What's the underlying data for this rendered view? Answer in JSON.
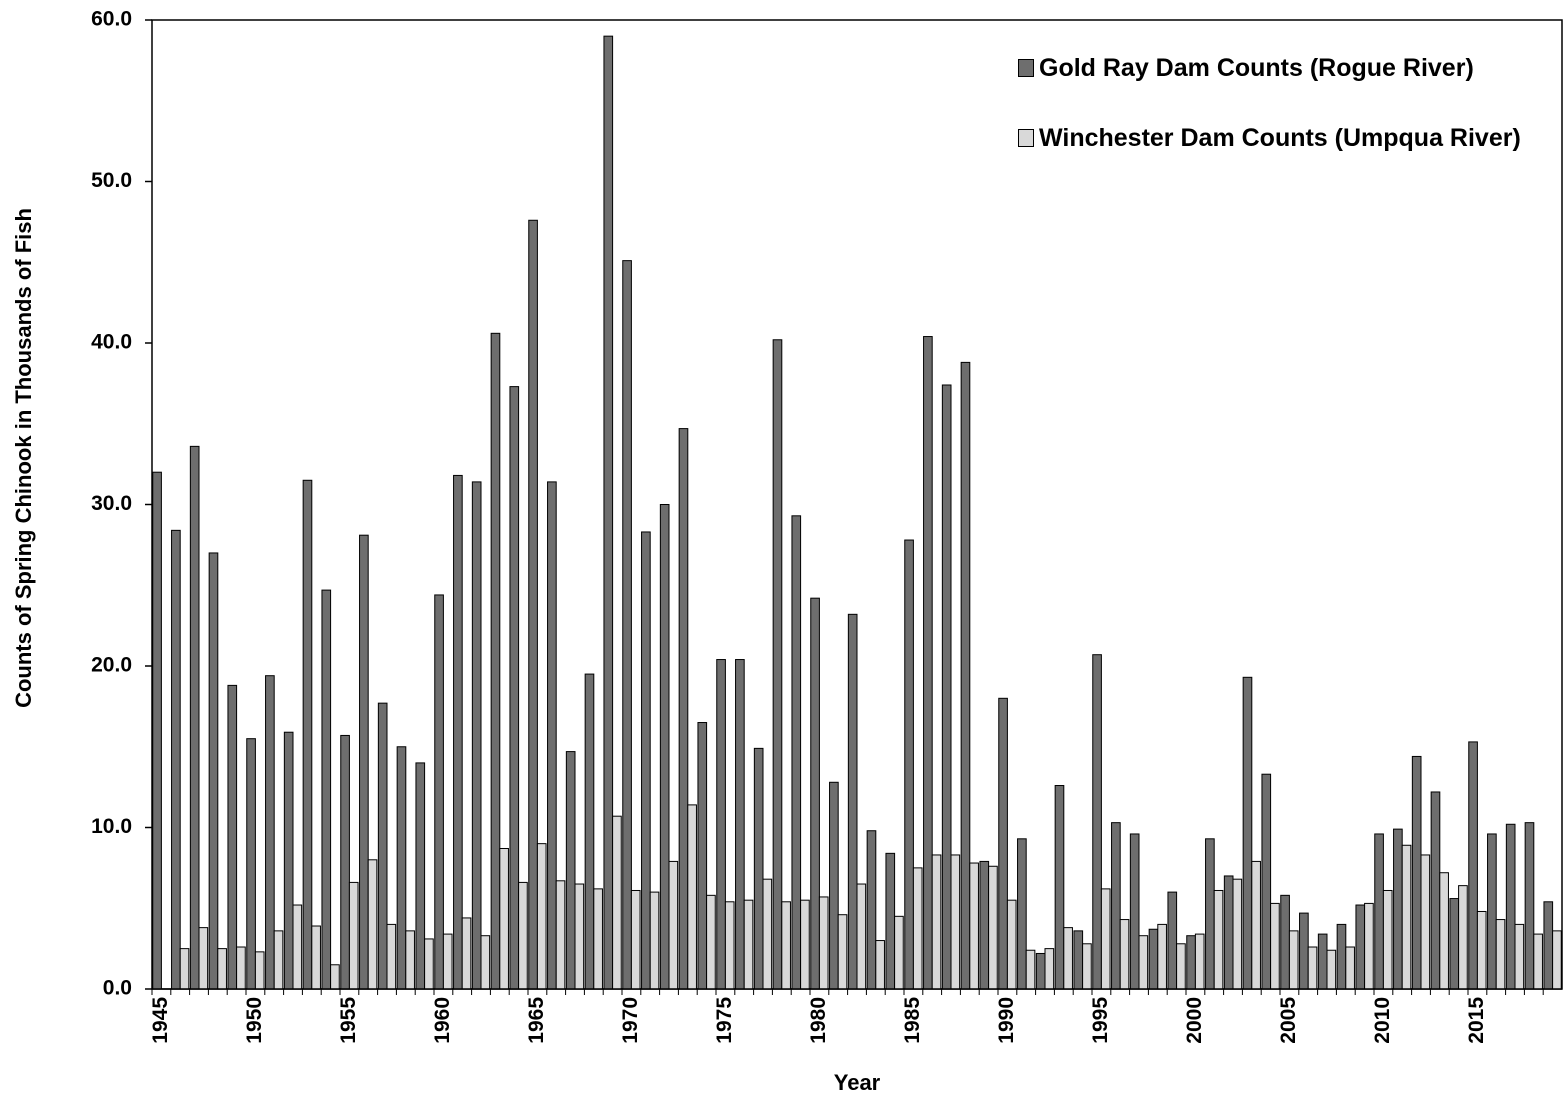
{
  "chart_data": {
    "type": "bar",
    "x_label": "Year",
    "y_label": "Counts of Spring Chinook in Thousands of Fish",
    "categories": [
      "1945",
      null,
      null,
      null,
      null,
      "1950",
      null,
      null,
      null,
      null,
      "1955",
      null,
      null,
      null,
      null,
      "1960",
      null,
      null,
      null,
      null,
      "1965",
      null,
      null,
      null,
      null,
      "1970",
      null,
      null,
      null,
      null,
      "1975",
      null,
      null,
      null,
      null,
      "1980",
      null,
      null,
      null,
      null,
      "1985",
      null,
      null,
      null,
      null,
      "1990",
      null,
      null,
      null,
      null,
      "1995",
      null,
      null,
      null,
      null,
      "2000",
      null,
      null,
      null,
      null,
      "2005",
      null,
      null,
      null,
      null,
      "2010",
      null,
      null,
      null,
      null,
      "2015",
      null,
      null,
      null,
      null
    ],
    "series": [
      {
        "name": "Gold Ray Dam Counts (Rogue River)",
        "color": "#6e6e6e",
        "values": [
          32.0,
          28.4,
          33.6,
          27.0,
          18.8,
          15.5,
          19.4,
          15.9,
          31.5,
          24.7,
          15.7,
          28.1,
          17.7,
          15.0,
          14.0,
          24.4,
          31.8,
          31.4,
          40.6,
          37.3,
          47.6,
          31.4,
          14.7,
          19.5,
          59.0,
          45.1,
          28.3,
          30.0,
          34.7,
          16.5,
          20.4,
          20.4,
          14.9,
          40.2,
          29.3,
          24.2,
          12.8,
          23.2,
          9.8,
          8.4,
          27.8,
          40.4,
          37.4,
          38.8,
          7.9,
          18.0,
          9.3,
          2.2,
          12.6,
          3.6,
          20.7,
          10.3,
          9.6,
          3.7,
          6.0,
          3.3,
          9.3,
          7.0,
          19.3,
          13.3,
          5.8,
          4.7,
          3.4,
          4.0,
          5.2,
          9.6,
          9.9,
          14.4,
          12.2,
          5.6,
          15.3,
          9.6,
          10.2,
          10.3,
          5.4
        ]
      },
      {
        "name": "Winchester Dam Counts (Umpqua River)",
        "color": "#d9d9d9",
        "values": [
          null,
          2.5,
          3.8,
          2.5,
          2.6,
          2.3,
          3.6,
          5.2,
          3.9,
          1.5,
          6.6,
          8.0,
          4.0,
          3.6,
          3.1,
          3.4,
          4.4,
          3.3,
          8.7,
          6.6,
          9.0,
          6.7,
          6.5,
          6.2,
          10.7,
          6.1,
          6.0,
          7.9,
          11.4,
          5.8,
          5.4,
          5.5,
          6.8,
          5.4,
          5.5,
          5.7,
          4.6,
          6.5,
          3.0,
          4.5,
          7.5,
          8.3,
          8.3,
          7.8,
          7.6,
          5.5,
          2.4,
          2.5,
          3.8,
          2.8,
          6.2,
          4.3,
          3.3,
          4.0,
          2.8,
          3.4,
          6.1,
          6.8,
          7.9,
          5.3,
          3.6,
          2.6,
          2.4,
          2.6,
          5.3,
          6.1,
          8.9,
          8.3,
          7.2,
          6.4,
          4.8,
          4.3,
          4.0,
          3.4,
          3.6
        ]
      }
    ],
    "ylim": [
      0,
      60
    ],
    "yticks": [
      {
        "value": 0,
        "label": "0.0"
      },
      {
        "value": 10,
        "label": "10.0"
      },
      {
        "value": 20,
        "label": "20.0"
      },
      {
        "value": 30,
        "label": "30.0"
      },
      {
        "value": 40,
        "label": "40.0"
      },
      {
        "value": 50,
        "label": "50.0"
      },
      {
        "value": 60,
        "label": "60.0"
      }
    ],
    "grid": false,
    "legend": "upper right"
  }
}
